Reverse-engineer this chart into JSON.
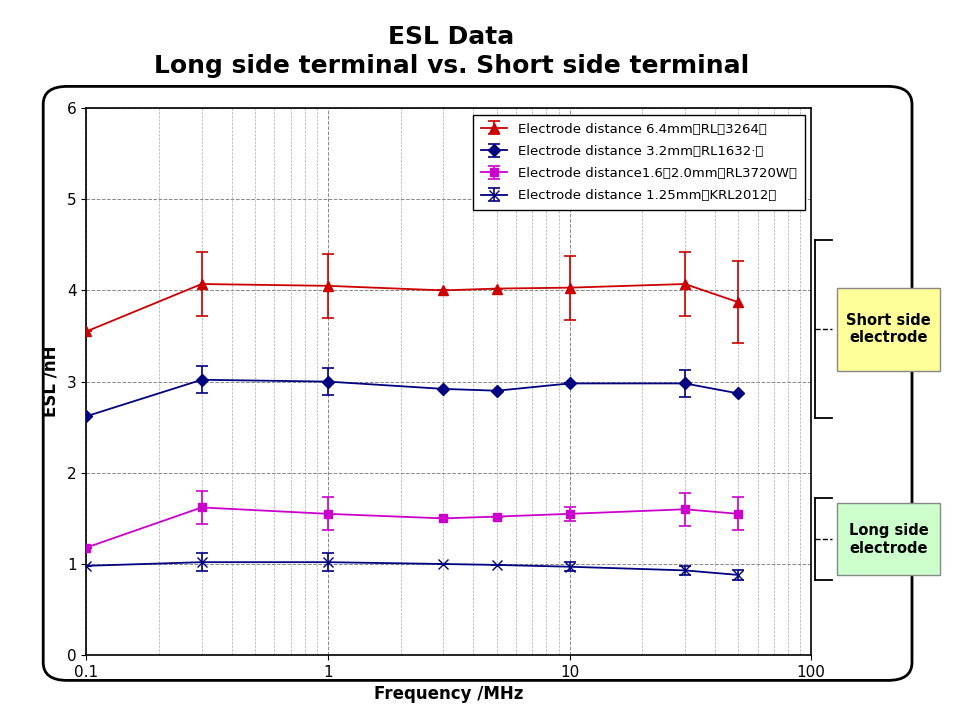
{
  "title_line1": "ESL Data",
  "title_line2": "Long side terminal vs. Short side terminal",
  "xlabel": "Frequency /MHz",
  "ylabel": "ESL /nH",
  "ylim": [
    0,
    6
  ],
  "xlim": [
    0.1,
    100
  ],
  "background_color": "#ffffff",
  "plot_bg_color": "#ffffff",
  "series": [
    {
      "label": "Electrode distance 6.4mm（RL－3264）",
      "color": "#cc0000",
      "marker": "^",
      "markersize": 7,
      "linestyle": "-",
      "x": [
        0.1,
        0.3,
        1.0,
        3.0,
        5.0,
        10.0,
        30.0,
        50.0
      ],
      "y": [
        3.55,
        4.07,
        4.05,
        4.0,
        4.02,
        4.03,
        4.07,
        3.87
      ],
      "yerr_lo": [
        0.0,
        0.35,
        0.35,
        0.0,
        0.0,
        0.35,
        0.35,
        0.45
      ],
      "yerr_hi": [
        0.0,
        0.35,
        0.35,
        0.0,
        0.0,
        0.35,
        0.35,
        0.45
      ]
    },
    {
      "label": "Electrode distance 3.2mm（RL1632·）",
      "color": "#000080",
      "marker": "D",
      "markersize": 6,
      "linestyle": "-",
      "x": [
        0.1,
        0.3,
        1.0,
        3.0,
        5.0,
        10.0,
        30.0,
        50.0
      ],
      "y": [
        2.62,
        3.02,
        3.0,
        2.92,
        2.9,
        2.98,
        2.98,
        2.87
      ],
      "yerr_lo": [
        0.0,
        0.15,
        0.15,
        0.0,
        0.0,
        0.0,
        0.15,
        0.0
      ],
      "yerr_hi": [
        0.0,
        0.15,
        0.15,
        0.0,
        0.0,
        0.0,
        0.15,
        0.0
      ]
    },
    {
      "label": "Electrode distance1.6～2.0mm（RL3720W）",
      "color": "#cc00cc",
      "marker": "s",
      "markersize": 6,
      "linestyle": "-",
      "x": [
        0.1,
        0.3,
        1.0,
        3.0,
        5.0,
        10.0,
        30.0,
        50.0
      ],
      "y": [
        1.18,
        1.62,
        1.55,
        1.5,
        1.52,
        1.55,
        1.6,
        1.55
      ],
      "yerr_lo": [
        0.0,
        0.18,
        0.18,
        0.0,
        0.0,
        0.08,
        0.18,
        0.18
      ],
      "yerr_hi": [
        0.0,
        0.18,
        0.18,
        0.0,
        0.0,
        0.08,
        0.18,
        0.18
      ]
    },
    {
      "label": "Electrode distance 1.25mm（KRL2012）",
      "color": "#000080",
      "marker": "x",
      "markersize": 7,
      "linestyle": "-",
      "x": [
        0.1,
        0.3,
        1.0,
        3.0,
        5.0,
        10.0,
        30.0,
        50.0
      ],
      "y": [
        0.98,
        1.02,
        1.02,
        1.0,
        0.99,
        0.97,
        0.93,
        0.88
      ],
      "yerr_lo": [
        0.0,
        0.1,
        0.1,
        0.0,
        0.0,
        0.05,
        0.05,
        0.05
      ],
      "yerr_hi": [
        0.0,
        0.1,
        0.1,
        0.0,
        0.0,
        0.05,
        0.05,
        0.05
      ]
    }
  ],
  "short_y1": 2.6,
  "short_y2": 4.55,
  "long_y1": 0.82,
  "long_y2": 1.72,
  "short_box_color": "#ffff99",
  "long_box_color": "#ccffcc",
  "short_box_label": "Short side\nelectrode",
  "long_box_label": "Long side\nelectrode",
  "legend_labels": [
    "Electrode distance 6.4mm（RL－3264）",
    "Electrode distance 3.2mm（RL1632·）",
    "Electrode distance1.6～2.0mm（RL3720W）",
    "Electrode distance 1.25mm（KRL2012）"
  ]
}
